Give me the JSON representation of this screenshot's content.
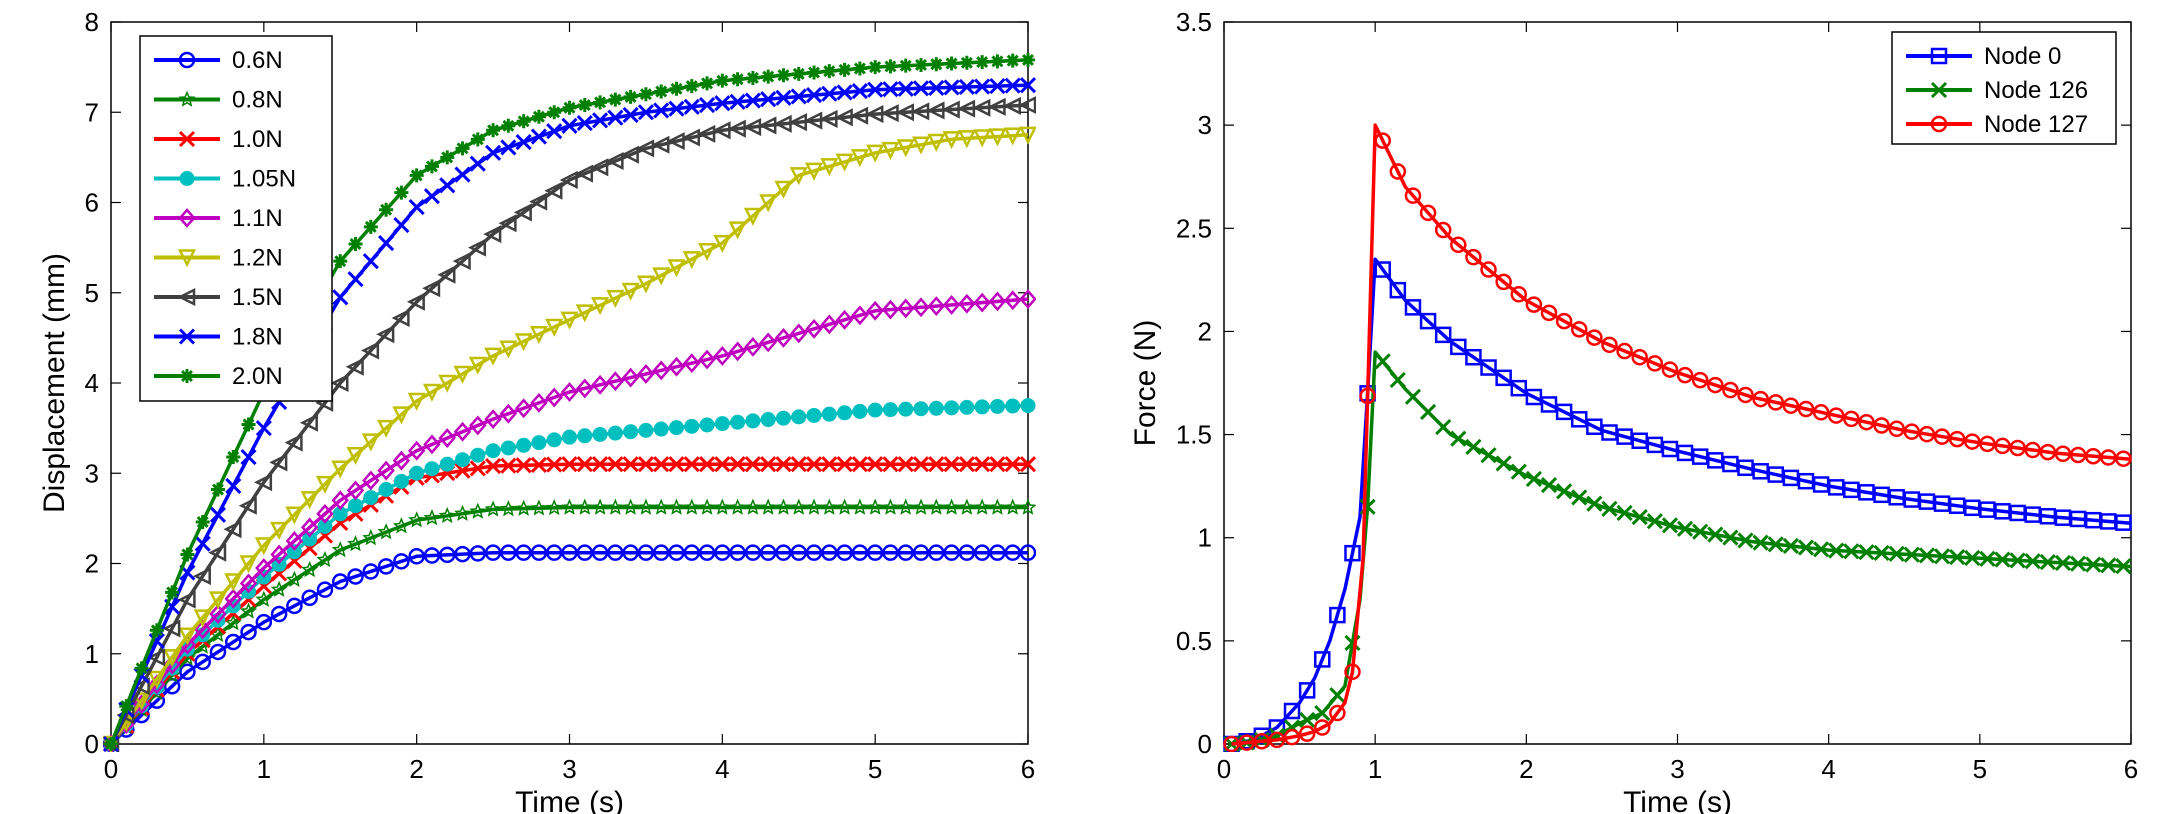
{
  "chart_data": [
    {
      "type": "line",
      "xlabel": "Time (s)",
      "ylabel": "Displacement (mm)",
      "xlim": [
        0,
        6
      ],
      "ylim": [
        0,
        8
      ],
      "xticks": [
        "0",
        "1",
        "2",
        "3",
        "4",
        "5",
        "6"
      ],
      "yticks": [
        "0",
        "1",
        "2",
        "3",
        "4",
        "5",
        "6",
        "7",
        "8"
      ],
      "legend_position": "top-left",
      "grid": false,
      "series": [
        {
          "name": "0.6N",
          "color": "#0000ff",
          "marker": "circle-open",
          "points": [
            [
              0,
              0
            ],
            [
              0.5,
              0.8
            ],
            [
              1,
              1.35
            ],
            [
              1.5,
              1.8
            ],
            [
              2,
              2.08
            ],
            [
              2.5,
              2.12
            ],
            [
              3,
              2.12
            ],
            [
              4,
              2.12
            ],
            [
              5,
              2.12
            ],
            [
              6,
              2.12
            ]
          ]
        },
        {
          "name": "0.8N",
          "color": "#008000",
          "marker": "star",
          "points": [
            [
              0,
              0
            ],
            [
              0.5,
              0.95
            ],
            [
              1,
              1.6
            ],
            [
              1.5,
              2.15
            ],
            [
              2,
              2.48
            ],
            [
              2.5,
              2.6
            ],
            [
              3,
              2.62
            ],
            [
              4,
              2.62
            ],
            [
              5,
              2.62
            ],
            [
              6,
              2.62
            ]
          ]
        },
        {
          "name": "1.0N",
          "color": "#ff0000",
          "marker": "x",
          "points": [
            [
              0,
              0
            ],
            [
              0.5,
              1.0
            ],
            [
              1,
              1.75
            ],
            [
              1.5,
              2.45
            ],
            [
              2,
              2.95
            ],
            [
              2.5,
              3.08
            ],
            [
              3,
              3.1
            ],
            [
              4,
              3.1
            ],
            [
              5,
              3.1
            ],
            [
              6,
              3.1
            ]
          ]
        },
        {
          "name": "1.05N",
          "color": "#00bfbf",
          "marker": "circle-filled",
          "points": [
            [
              0,
              0
            ],
            [
              0.5,
              1.05
            ],
            [
              1,
              1.85
            ],
            [
              1.5,
              2.55
            ],
            [
              2,
              3.0
            ],
            [
              2.5,
              3.25
            ],
            [
              3,
              3.4
            ],
            [
              4,
              3.55
            ],
            [
              5,
              3.7
            ],
            [
              6,
              3.75
            ]
          ]
        },
        {
          "name": "1.1N",
          "color": "#bf00bf",
          "marker": "diamond",
          "points": [
            [
              0,
              0
            ],
            [
              0.5,
              1.1
            ],
            [
              1,
              1.95
            ],
            [
              1.5,
              2.7
            ],
            [
              2,
              3.25
            ],
            [
              2.5,
              3.6
            ],
            [
              3,
              3.9
            ],
            [
              4,
              4.3
            ],
            [
              5,
              4.8
            ],
            [
              6,
              4.93
            ]
          ]
        },
        {
          "name": "1.2N",
          "color": "#bfbf00",
          "marker": "triangle-down",
          "points": [
            [
              0,
              0
            ],
            [
              0.5,
              1.2
            ],
            [
              1,
              2.2
            ],
            [
              1.5,
              3.05
            ],
            [
              2,
              3.8
            ],
            [
              2.5,
              4.3
            ],
            [
              3,
              4.7
            ],
            [
              3.5,
              5.1
            ],
            [
              4,
              5.55
            ],
            [
              4.5,
              6.3
            ],
            [
              5,
              6.55
            ],
            [
              5.5,
              6.7
            ],
            [
              6,
              6.75
            ]
          ]
        },
        {
          "name": "1.5N",
          "color": "#404040",
          "marker": "triangle-left",
          "points": [
            [
              0,
              0
            ],
            [
              0.5,
              1.6
            ],
            [
              1,
              2.9
            ],
            [
              1.5,
              4.0
            ],
            [
              2,
              4.9
            ],
            [
              2.5,
              5.65
            ],
            [
              3,
              6.25
            ],
            [
              3.5,
              6.6
            ],
            [
              4,
              6.8
            ],
            [
              5,
              6.98
            ],
            [
              6,
              7.08
            ]
          ]
        },
        {
          "name": "1.8N",
          "color": "#0000ff",
          "marker": "x",
          "points": [
            [
              0,
              0
            ],
            [
              0.5,
              1.9
            ],
            [
              1,
              3.5
            ],
            [
              1.5,
              4.95
            ],
            [
              2,
              5.95
            ],
            [
              2.5,
              6.55
            ],
            [
              3,
              6.85
            ],
            [
              3.5,
              7.0
            ],
            [
              4,
              7.1
            ],
            [
              5,
              7.25
            ],
            [
              6,
              7.3
            ]
          ]
        },
        {
          "name": "2.0N",
          "color": "#008000",
          "marker": "asterisk",
          "points": [
            [
              0,
              0
            ],
            [
              0.5,
              2.1
            ],
            [
              1,
              3.9
            ],
            [
              1.5,
              5.35
            ],
            [
              2,
              6.3
            ],
            [
              2.5,
              6.8
            ],
            [
              3,
              7.05
            ],
            [
              3.5,
              7.2
            ],
            [
              4,
              7.35
            ],
            [
              5,
              7.5
            ],
            [
              6,
              7.58
            ]
          ]
        }
      ]
    },
    {
      "type": "line",
      "xlabel": "Time (s)",
      "ylabel": "Force (N)",
      "xlim": [
        0,
        6
      ],
      "ylim": [
        0,
        3.5
      ],
      "xticks": [
        "0",
        "1",
        "2",
        "3",
        "4",
        "5",
        "6"
      ],
      "yticks": [
        "0",
        "0.5",
        "1",
        "1.5",
        "2",
        "2.5",
        "3",
        "3.5"
      ],
      "legend_position": "top-right",
      "grid": false,
      "series": [
        {
          "name": "Node 0",
          "color": "#0000ff",
          "marker": "square",
          "points": [
            [
              0.05,
              0.0
            ],
            [
              0.2,
              0.02
            ],
            [
              0.35,
              0.08
            ],
            [
              0.5,
              0.2
            ],
            [
              0.6,
              0.32
            ],
            [
              0.7,
              0.5
            ],
            [
              0.8,
              0.75
            ],
            [
              0.9,
              1.1
            ],
            [
              0.95,
              1.7
            ],
            [
              1.0,
              2.35
            ],
            [
              1.2,
              2.15
            ],
            [
              1.5,
              1.95
            ],
            [
              2,
              1.7
            ],
            [
              2.5,
              1.52
            ],
            [
              3,
              1.42
            ],
            [
              3.5,
              1.33
            ],
            [
              4,
              1.25
            ],
            [
              4.5,
              1.19
            ],
            [
              5,
              1.14
            ],
            [
              5.5,
              1.1
            ],
            [
              6,
              1.07
            ]
          ]
        },
        {
          "name": "Node 126",
          "color": "#008000",
          "marker": "x",
          "points": [
            [
              0.05,
              0.0
            ],
            [
              0.2,
              0.01
            ],
            [
              0.35,
              0.04
            ],
            [
              0.5,
              0.1
            ],
            [
              0.65,
              0.15
            ],
            [
              0.8,
              0.28
            ],
            [
              0.9,
              0.7
            ],
            [
              0.95,
              1.15
            ],
            [
              1.0,
              1.9
            ],
            [
              1.2,
              1.72
            ],
            [
              1.5,
              1.5
            ],
            [
              2,
              1.3
            ],
            [
              2.5,
              1.15
            ],
            [
              3,
              1.05
            ],
            [
              3.5,
              0.98
            ],
            [
              4,
              0.94
            ],
            [
              4.5,
              0.92
            ],
            [
              5,
              0.9
            ],
            [
              5.5,
              0.88
            ],
            [
              6,
              0.86
            ]
          ]
        },
        {
          "name": "Node 127",
          "color": "#ff0000",
          "marker": "circle-open",
          "points": [
            [
              0.05,
              0.0
            ],
            [
              0.2,
              0.01
            ],
            [
              0.35,
              0.02
            ],
            [
              0.5,
              0.04
            ],
            [
              0.6,
              0.06
            ],
            [
              0.7,
              0.1
            ],
            [
              0.8,
              0.2
            ],
            [
              0.85,
              0.35
            ],
            [
              0.92,
              0.9
            ],
            [
              1.0,
              3.0
            ],
            [
              1.2,
              2.7
            ],
            [
              1.5,
              2.45
            ],
            [
              2,
              2.15
            ],
            [
              2.5,
              1.95
            ],
            [
              3,
              1.8
            ],
            [
              3.5,
              1.68
            ],
            [
              4,
              1.6
            ],
            [
              4.5,
              1.52
            ],
            [
              5,
              1.46
            ],
            [
              5.5,
              1.41
            ],
            [
              6,
              1.38
            ]
          ]
        }
      ]
    }
  ]
}
